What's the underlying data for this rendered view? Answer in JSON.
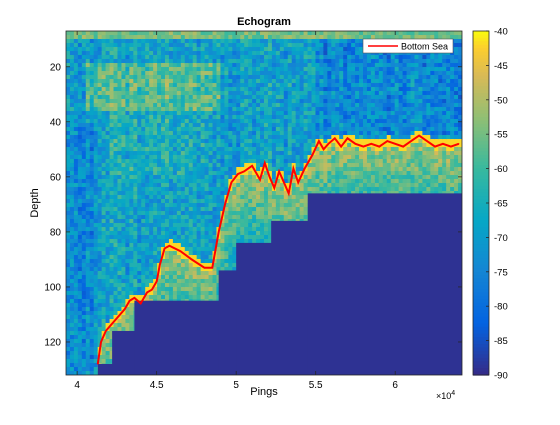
{
  "chart_data": {
    "type": "heatmap",
    "title": "Echogram",
    "xlabel": "Pings",
    "ylabel": "Depth",
    "x_multiplier": "×10",
    "x_multiplier_exp": "4",
    "xlim": [
      3.93,
      6.42
    ],
    "ylim": [
      7,
      132
    ],
    "y_reversed": true,
    "x_ticks": [
      4,
      4.5,
      5,
      5.5,
      6
    ],
    "x_tick_labels": [
      "4",
      "4.5",
      "5",
      "5.5",
      "6"
    ],
    "y_ticks": [
      20,
      40,
      60,
      80,
      100,
      120
    ],
    "y_tick_labels": [
      "20",
      "40",
      "60",
      "80",
      "100",
      "120"
    ],
    "colorbar": {
      "colormap": "parula",
      "clim": [
        -90,
        -40
      ],
      "ticks": [
        -40,
        -45,
        -50,
        -55,
        -60,
        -65,
        -70,
        -75,
        -80,
        -85,
        -90
      ],
      "tick_labels": [
        "-40",
        "-45",
        "-50",
        "-55",
        "-60",
        "-65",
        "-70",
        "-75",
        "-80",
        "-85",
        "-90"
      ]
    },
    "legend": {
      "position": "top-right",
      "entries": [
        {
          "name": "Bottom Sea",
          "color": "#ff0000"
        }
      ]
    },
    "series": [
      {
        "name": "Bottom Sea",
        "x": [
          4.13,
          4.15,
          4.18,
          4.21,
          4.24,
          4.27,
          4.3,
          4.33,
          4.36,
          4.4,
          4.44,
          4.47,
          4.5,
          4.52,
          4.55,
          4.58,
          4.65,
          4.72,
          4.8,
          4.85,
          4.89,
          4.93,
          4.97,
          5.01,
          5.05,
          5.1,
          5.15,
          5.18,
          5.21,
          5.24,
          5.27,
          5.3,
          5.33,
          5.36,
          5.39,
          5.43,
          5.48,
          5.52,
          5.55,
          5.58,
          5.62,
          5.66,
          5.7,
          5.75,
          5.8,
          5.85,
          5.9,
          5.95,
          6.0,
          6.05,
          6.1,
          6.15,
          6.2,
          6.25,
          6.3,
          6.35,
          6.4
        ],
        "y": [
          128,
          120,
          116,
          114,
          112,
          110,
          108,
          105,
          104,
          106,
          102,
          101,
          98,
          92,
          86,
          85,
          87,
          90,
          93,
          93,
          80,
          70,
          62,
          59,
          58,
          56,
          61,
          55,
          60,
          64,
          58,
          62,
          66,
          57,
          62,
          57,
          52,
          47,
          50,
          48,
          46,
          49,
          46,
          48,
          49,
          48,
          49,
          47,
          48,
          49,
          47,
          45,
          47,
          49,
          48,
          49,
          48
        ]
      }
    ],
    "noise_floor_steps": [
      {
        "x_start": 4.13,
        "x_end": 4.22,
        "depth": 128
      },
      {
        "x_start": 4.22,
        "x_end": 4.36,
        "depth": 116
      },
      {
        "x_start": 4.36,
        "x_end": 4.89,
        "depth": 105
      },
      {
        "x_start": 4.89,
        "x_end": 5.0,
        "depth": 94
      },
      {
        "x_start": 5.0,
        "x_end": 5.22,
        "depth": 84
      },
      {
        "x_start": 5.22,
        "x_end": 5.45,
        "depth": 76
      },
      {
        "x_start": 5.45,
        "x_end": 6.42,
        "depth": 66
      }
    ]
  }
}
